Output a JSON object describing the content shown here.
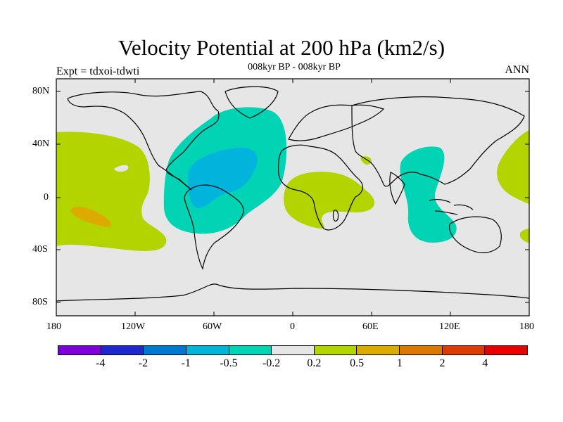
{
  "header": {
    "title": "Velocity Potential at 200 hPa (km2/s)",
    "subtitle": "008kyr BP - 008kyr BP",
    "left_label": "Expt = tdxoi-tdwti",
    "right_label": "ANN"
  },
  "map": {
    "projection": "cylindrical equidistant",
    "lon_range": [
      -180,
      180
    ],
    "lat_range": [
      -90,
      90
    ],
    "background_color": "#e6e6e6",
    "lat_tick_labels": [
      "80N",
      "40N",
      "0",
      "40S",
      "80S"
    ],
    "lon_tick_labels": [
      "180",
      "120W",
      "60W",
      "0",
      "60E",
      "120E",
      "180"
    ],
    "shaded_regions": [
      {
        "id": "atlantic-negative",
        "level": "-0.5 to -0.2",
        "color": "#00d4b4"
      },
      {
        "id": "caribbean-negative-core",
        "level": "-1 to -0.5",
        "color": "#00b4dc"
      },
      {
        "id": "indian-ocean-negative",
        "level": "-0.5 to -0.2",
        "color": "#00d4b4"
      },
      {
        "id": "central-pacific-positive",
        "level": "0.2 to 0.5",
        "color": "#b4d400"
      },
      {
        "id": "south-pacific-positive-core",
        "level": "0.5 to 1",
        "color": "#dcaa00"
      },
      {
        "id": "africa-positive",
        "level": "0.2 to 0.5",
        "color": "#b4d400"
      },
      {
        "id": "arabia-positive",
        "level": "0.2 to 0.5",
        "color": "#b4d400"
      },
      {
        "id": "west-pacific-positive",
        "level": "0.2 to 0.5",
        "color": "#b4d400"
      }
    ]
  },
  "colorbar": {
    "colors": [
      "#7d00dc",
      "#1e28d2",
      "#0078d2",
      "#00b4dc",
      "#00d4b4",
      "#e6e6e6",
      "#b4d400",
      "#dcaa00",
      "#dc7800",
      "#dc3c00",
      "#e60000"
    ],
    "labels": [
      "-4",
      "-2",
      "-1",
      "-0.5",
      "-0.2",
      "0.2",
      "0.5",
      "1",
      "2",
      "4"
    ]
  }
}
